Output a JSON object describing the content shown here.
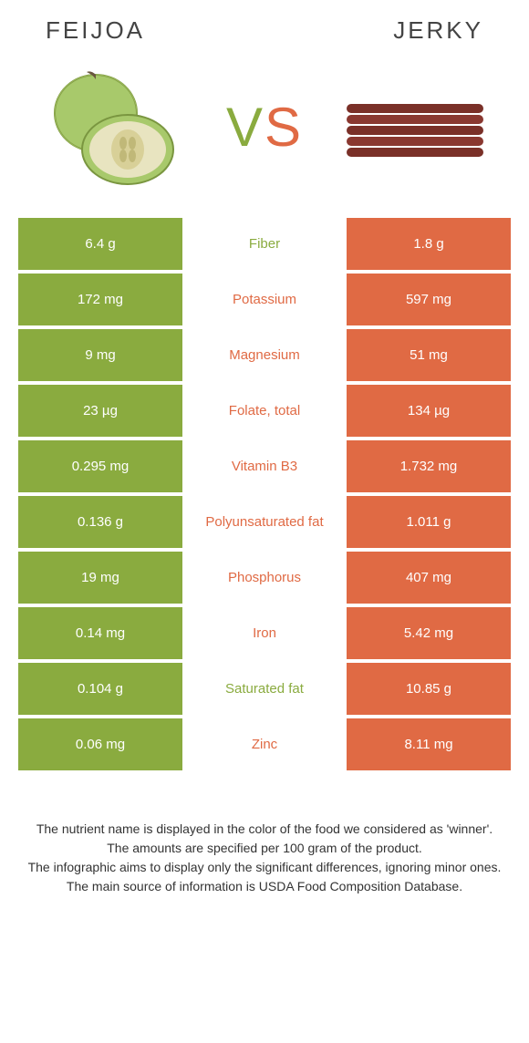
{
  "colors": {
    "green": "#8aab3f",
    "orange": "#e06a44",
    "text": "#444444"
  },
  "header": {
    "left": "Feijoa",
    "right": "Jerky"
  },
  "vs": {
    "v": "V",
    "s": "S"
  },
  "rows": [
    {
      "left": "6.4 g",
      "label": "Fiber",
      "right": "1.8 g",
      "winner": "green"
    },
    {
      "left": "172 mg",
      "label": "Potassium",
      "right": "597 mg",
      "winner": "orange"
    },
    {
      "left": "9 mg",
      "label": "Magnesium",
      "right": "51 mg",
      "winner": "orange"
    },
    {
      "left": "23 µg",
      "label": "Folate, total",
      "right": "134 µg",
      "winner": "orange"
    },
    {
      "left": "0.295 mg",
      "label": "Vitamin B3",
      "right": "1.732 mg",
      "winner": "orange"
    },
    {
      "left": "0.136 g",
      "label": "Polyunsaturated fat",
      "right": "1.011 g",
      "winner": "orange"
    },
    {
      "left": "19 mg",
      "label": "Phosphorus",
      "right": "407 mg",
      "winner": "orange"
    },
    {
      "left": "0.14 mg",
      "label": "Iron",
      "right": "5.42 mg",
      "winner": "orange"
    },
    {
      "left": "0.104 g",
      "label": "Saturated fat",
      "right": "10.85 g",
      "winner": "green"
    },
    {
      "left": "0.06 mg",
      "label": "Zinc",
      "right": "8.11 mg",
      "winner": "orange"
    }
  ],
  "footer": {
    "l1": "The nutrient name is displayed in the color of the food we considered as 'winner'.",
    "l2": "The amounts are specified per 100 gram of the product.",
    "l3": "The infographic aims to display only the significant differences, ignoring minor ones.",
    "l4": "The main source of information is USDA Food Composition Database."
  }
}
